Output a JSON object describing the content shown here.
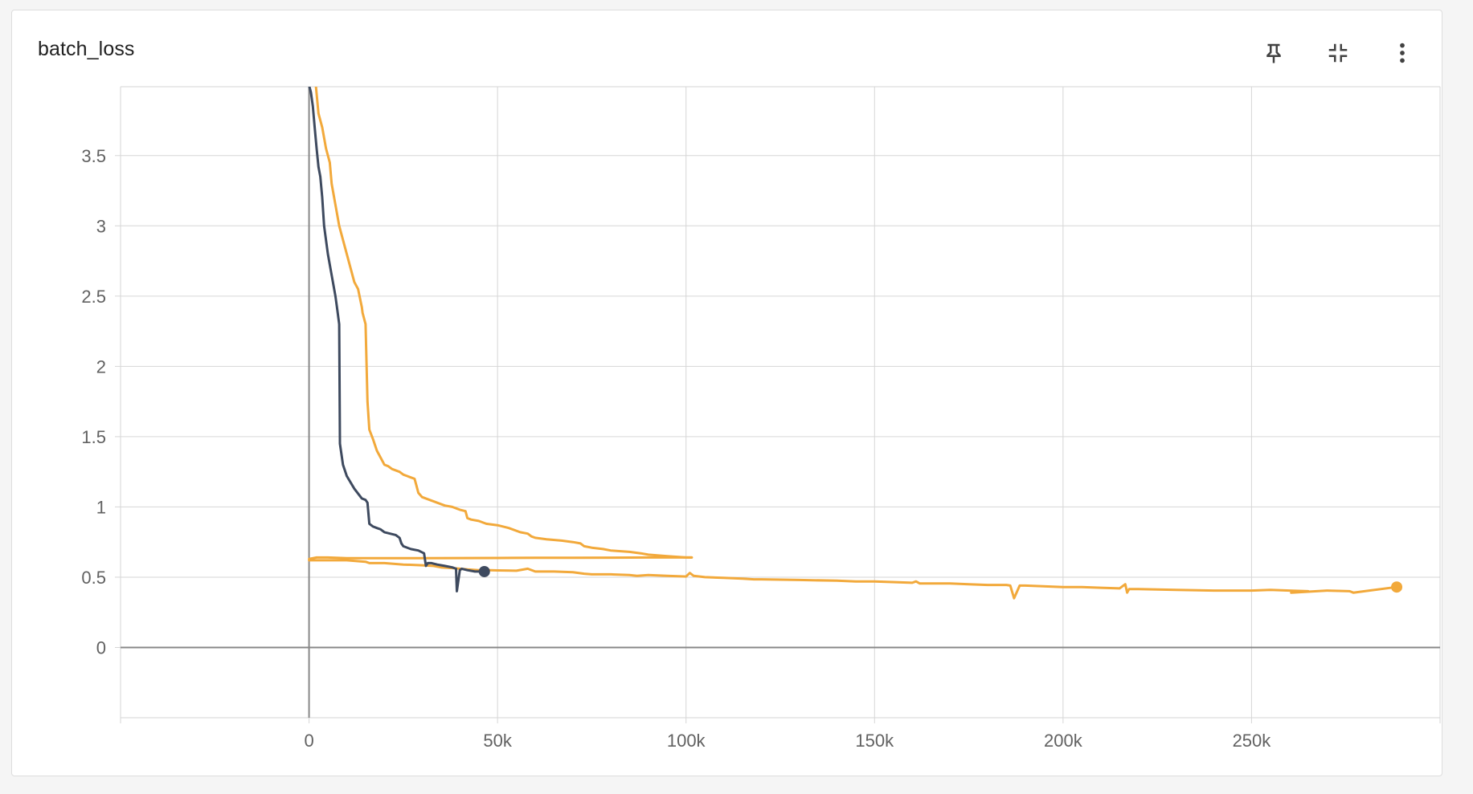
{
  "card": {
    "title": "batch_loss"
  },
  "toolbar": {
    "pin_icon": "pin-icon",
    "collapse_icon": "fullscreen-exit-icon",
    "more_icon": "more-vert-icon"
  },
  "colors": {
    "orange": "#f2a93b",
    "orange_raw": "#f9ddb3",
    "navy": "#3e4a5f",
    "navy_raw": "#a7afbd",
    "grid": "#d6d6d6",
    "axis": "#888888"
  },
  "chart_data": {
    "type": "line",
    "title": "batch_loss",
    "xlabel": "",
    "ylabel": "",
    "xlim": [
      -50000,
      300000
    ],
    "ylim": [
      -0.5,
      3.99
    ],
    "x_ticks": [
      {
        "value": 0,
        "label": "0"
      },
      {
        "value": 50000,
        "label": "50k"
      },
      {
        "value": 100000,
        "label": "100k"
      },
      {
        "value": 150000,
        "label": "150k"
      },
      {
        "value": 200000,
        "label": "200k"
      },
      {
        "value": 250000,
        "label": "250k"
      }
    ],
    "y_ticks": [
      {
        "value": 0,
        "label": "0"
      },
      {
        "value": 0.5,
        "label": "0.5"
      },
      {
        "value": 1,
        "label": "1"
      },
      {
        "value": 1.5,
        "label": "1.5"
      },
      {
        "value": 2,
        "label": "2"
      },
      {
        "value": 2.5,
        "label": "2.5"
      },
      {
        "value": 3,
        "label": "3"
      },
      {
        "value": 3.5,
        "label": "3.5"
      }
    ],
    "grid": true,
    "legend": "none",
    "series": [
      {
        "color": "#f2a93b",
        "x": [
          1800,
          2500,
          3500,
          4500,
          5500,
          6000,
          7000,
          8000,
          9000,
          10000,
          11000,
          12000,
          13000,
          14000,
          14200,
          15000,
          15500,
          16000,
          17000,
          18000,
          19000,
          20000,
          21000,
          22000,
          24000,
          25000,
          26000,
          27000,
          28000,
          28500,
          29000,
          30000,
          32000,
          34000,
          36000,
          38000,
          40000,
          41500,
          42000,
          43000,
          45000,
          47000,
          50000,
          53000,
          56000,
          58000,
          59000,
          60000,
          63000,
          67000,
          70000,
          72000,
          73000,
          75000,
          78000,
          80000,
          85000,
          88000,
          90000,
          95000,
          100000,
          101500
        ],
        "y": [
          4.0,
          3.8,
          3.7,
          3.55,
          3.45,
          3.3,
          3.15,
          3.0,
          2.9,
          2.8,
          2.7,
          2.6,
          2.55,
          2.42,
          2.38,
          2.3,
          1.75,
          1.55,
          1.48,
          1.4,
          1.35,
          1.3,
          1.29,
          1.27,
          1.25,
          1.23,
          1.22,
          1.21,
          1.2,
          1.15,
          1.1,
          1.07,
          1.05,
          1.03,
          1.01,
          1.0,
          0.98,
          0.97,
          0.92,
          0.91,
          0.9,
          0.88,
          0.87,
          0.85,
          0.82,
          0.81,
          0.79,
          0.78,
          0.77,
          0.76,
          0.75,
          0.74,
          0.72,
          0.71,
          0.7,
          0.69,
          0.68,
          0.67,
          0.66,
          0.65,
          0.64,
          0.64
        ]
      },
      {
        "color": "#f2a93b",
        "x": [
          0,
          2000,
          5000,
          10000,
          20000,
          30000,
          40000,
          50000,
          60000,
          70000,
          80000,
          90000,
          101500
        ],
        "y": [
          0.63,
          0.64,
          0.64,
          0.635,
          0.635,
          0.635,
          0.636,
          0.637,
          0.638,
          0.638,
          0.639,
          0.64,
          0.64
        ]
      },
      {
        "color": "#f2a93b",
        "x": [
          0,
          5000,
          10000,
          15000,
          16000,
          20000,
          25000,
          30000,
          33000,
          35000,
          38000,
          40000,
          42000,
          45000,
          48000,
          50000,
          55000,
          58000,
          60000,
          65000,
          70000,
          73000,
          75000,
          80000,
          85000,
          87000,
          90000,
          95000,
          100000,
          101000,
          102000,
          105000,
          110000,
          115000,
          118000,
          120000,
          130000,
          140000,
          145000,
          150000,
          160000,
          161000,
          162000,
          170000,
          175000,
          180000,
          185000,
          186000,
          187000,
          187500,
          188500,
          190000,
          200000,
          205000,
          210000,
          215000,
          216500,
          217000,
          217500,
          220000,
          230000,
          240000,
          250000,
          255000,
          260000,
          265000,
          260500,
          270000,
          276000,
          277000,
          280000,
          288500
        ],
        "y": [
          0.62,
          0.62,
          0.62,
          0.61,
          0.6,
          0.6,
          0.59,
          0.585,
          0.58,
          0.57,
          0.565,
          0.56,
          0.555,
          0.55,
          0.55,
          0.548,
          0.546,
          0.56,
          0.54,
          0.54,
          0.535,
          0.525,
          0.52,
          0.52,
          0.515,
          0.51,
          0.515,
          0.51,
          0.505,
          0.53,
          0.51,
          0.5,
          0.495,
          0.49,
          0.485,
          0.485,
          0.48,
          0.475,
          0.47,
          0.47,
          0.46,
          0.47,
          0.455,
          0.455,
          0.45,
          0.445,
          0.445,
          0.44,
          0.35,
          0.38,
          0.44,
          0.44,
          0.43,
          0.43,
          0.425,
          0.42,
          0.45,
          0.39,
          0.415,
          0.415,
          0.41,
          0.405,
          0.405,
          0.41,
          0.405,
          0.4,
          0.39,
          0.405,
          0.4,
          0.39,
          0.4,
          0.43
        ]
      },
      {
        "color": "#3e4a5f",
        "x": [
          0,
          500,
          1000,
          1500,
          2000,
          2500,
          3000,
          3500,
          4000,
          5000,
          6000,
          7000,
          7500,
          8000,
          8200,
          9000,
          10000,
          12000,
          14000,
          15000,
          15500,
          16000,
          17000,
          18000,
          19000,
          20000,
          23000,
          24000,
          24500,
          25000,
          27000,
          29000,
          30500,
          31000,
          31500,
          32500,
          34000,
          36000,
          38000,
          39000,
          39200,
          40000,
          40500,
          42000,
          44000,
          46500
        ],
        "y": [
          4.0,
          3.95,
          3.85,
          3.7,
          3.55,
          3.42,
          3.35,
          3.2,
          3.0,
          2.8,
          2.65,
          2.5,
          2.4,
          2.3,
          1.45,
          1.3,
          1.22,
          1.13,
          1.06,
          1.05,
          1.03,
          0.88,
          0.86,
          0.85,
          0.84,
          0.82,
          0.8,
          0.78,
          0.74,
          0.72,
          0.7,
          0.69,
          0.67,
          0.58,
          0.6,
          0.6,
          0.59,
          0.58,
          0.57,
          0.56,
          0.4,
          0.55,
          0.56,
          0.55,
          0.54,
          0.54
        ]
      }
    ]
  }
}
